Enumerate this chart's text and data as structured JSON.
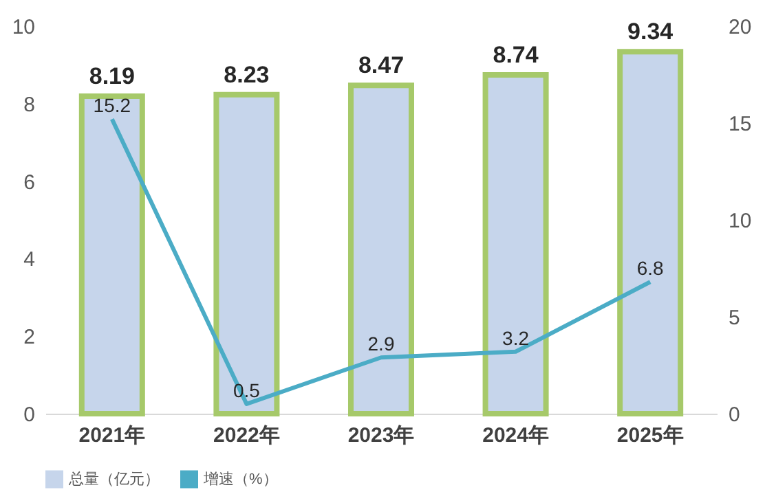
{
  "chart_data": {
    "type": "bar",
    "categories": [
      "2021年",
      "2022年",
      "2023年",
      "2024年",
      "2025年"
    ],
    "series": [
      {
        "name": "总量（亿元）",
        "color": "#c6d5eb",
        "values": [
          8.19,
          8.23,
          8.47,
          8.74,
          9.34
        ]
      },
      {
        "name": "增速（%）",
        "type": "line",
        "axis": "y2",
        "color": "#4bacc6",
        "values": [
          15.2,
          0.5,
          2.9,
          3.2,
          6.8
        ]
      }
    ],
    "ylim": [
      0,
      10
    ],
    "yticks": [
      0,
      2,
      4,
      6,
      8,
      10
    ],
    "y2lim": [
      0,
      20
    ],
    "y2ticks": [
      0,
      5,
      10,
      15,
      20
    ],
    "data_labels": true,
    "grid": false,
    "legend": "bottom",
    "marker": "none"
  }
}
